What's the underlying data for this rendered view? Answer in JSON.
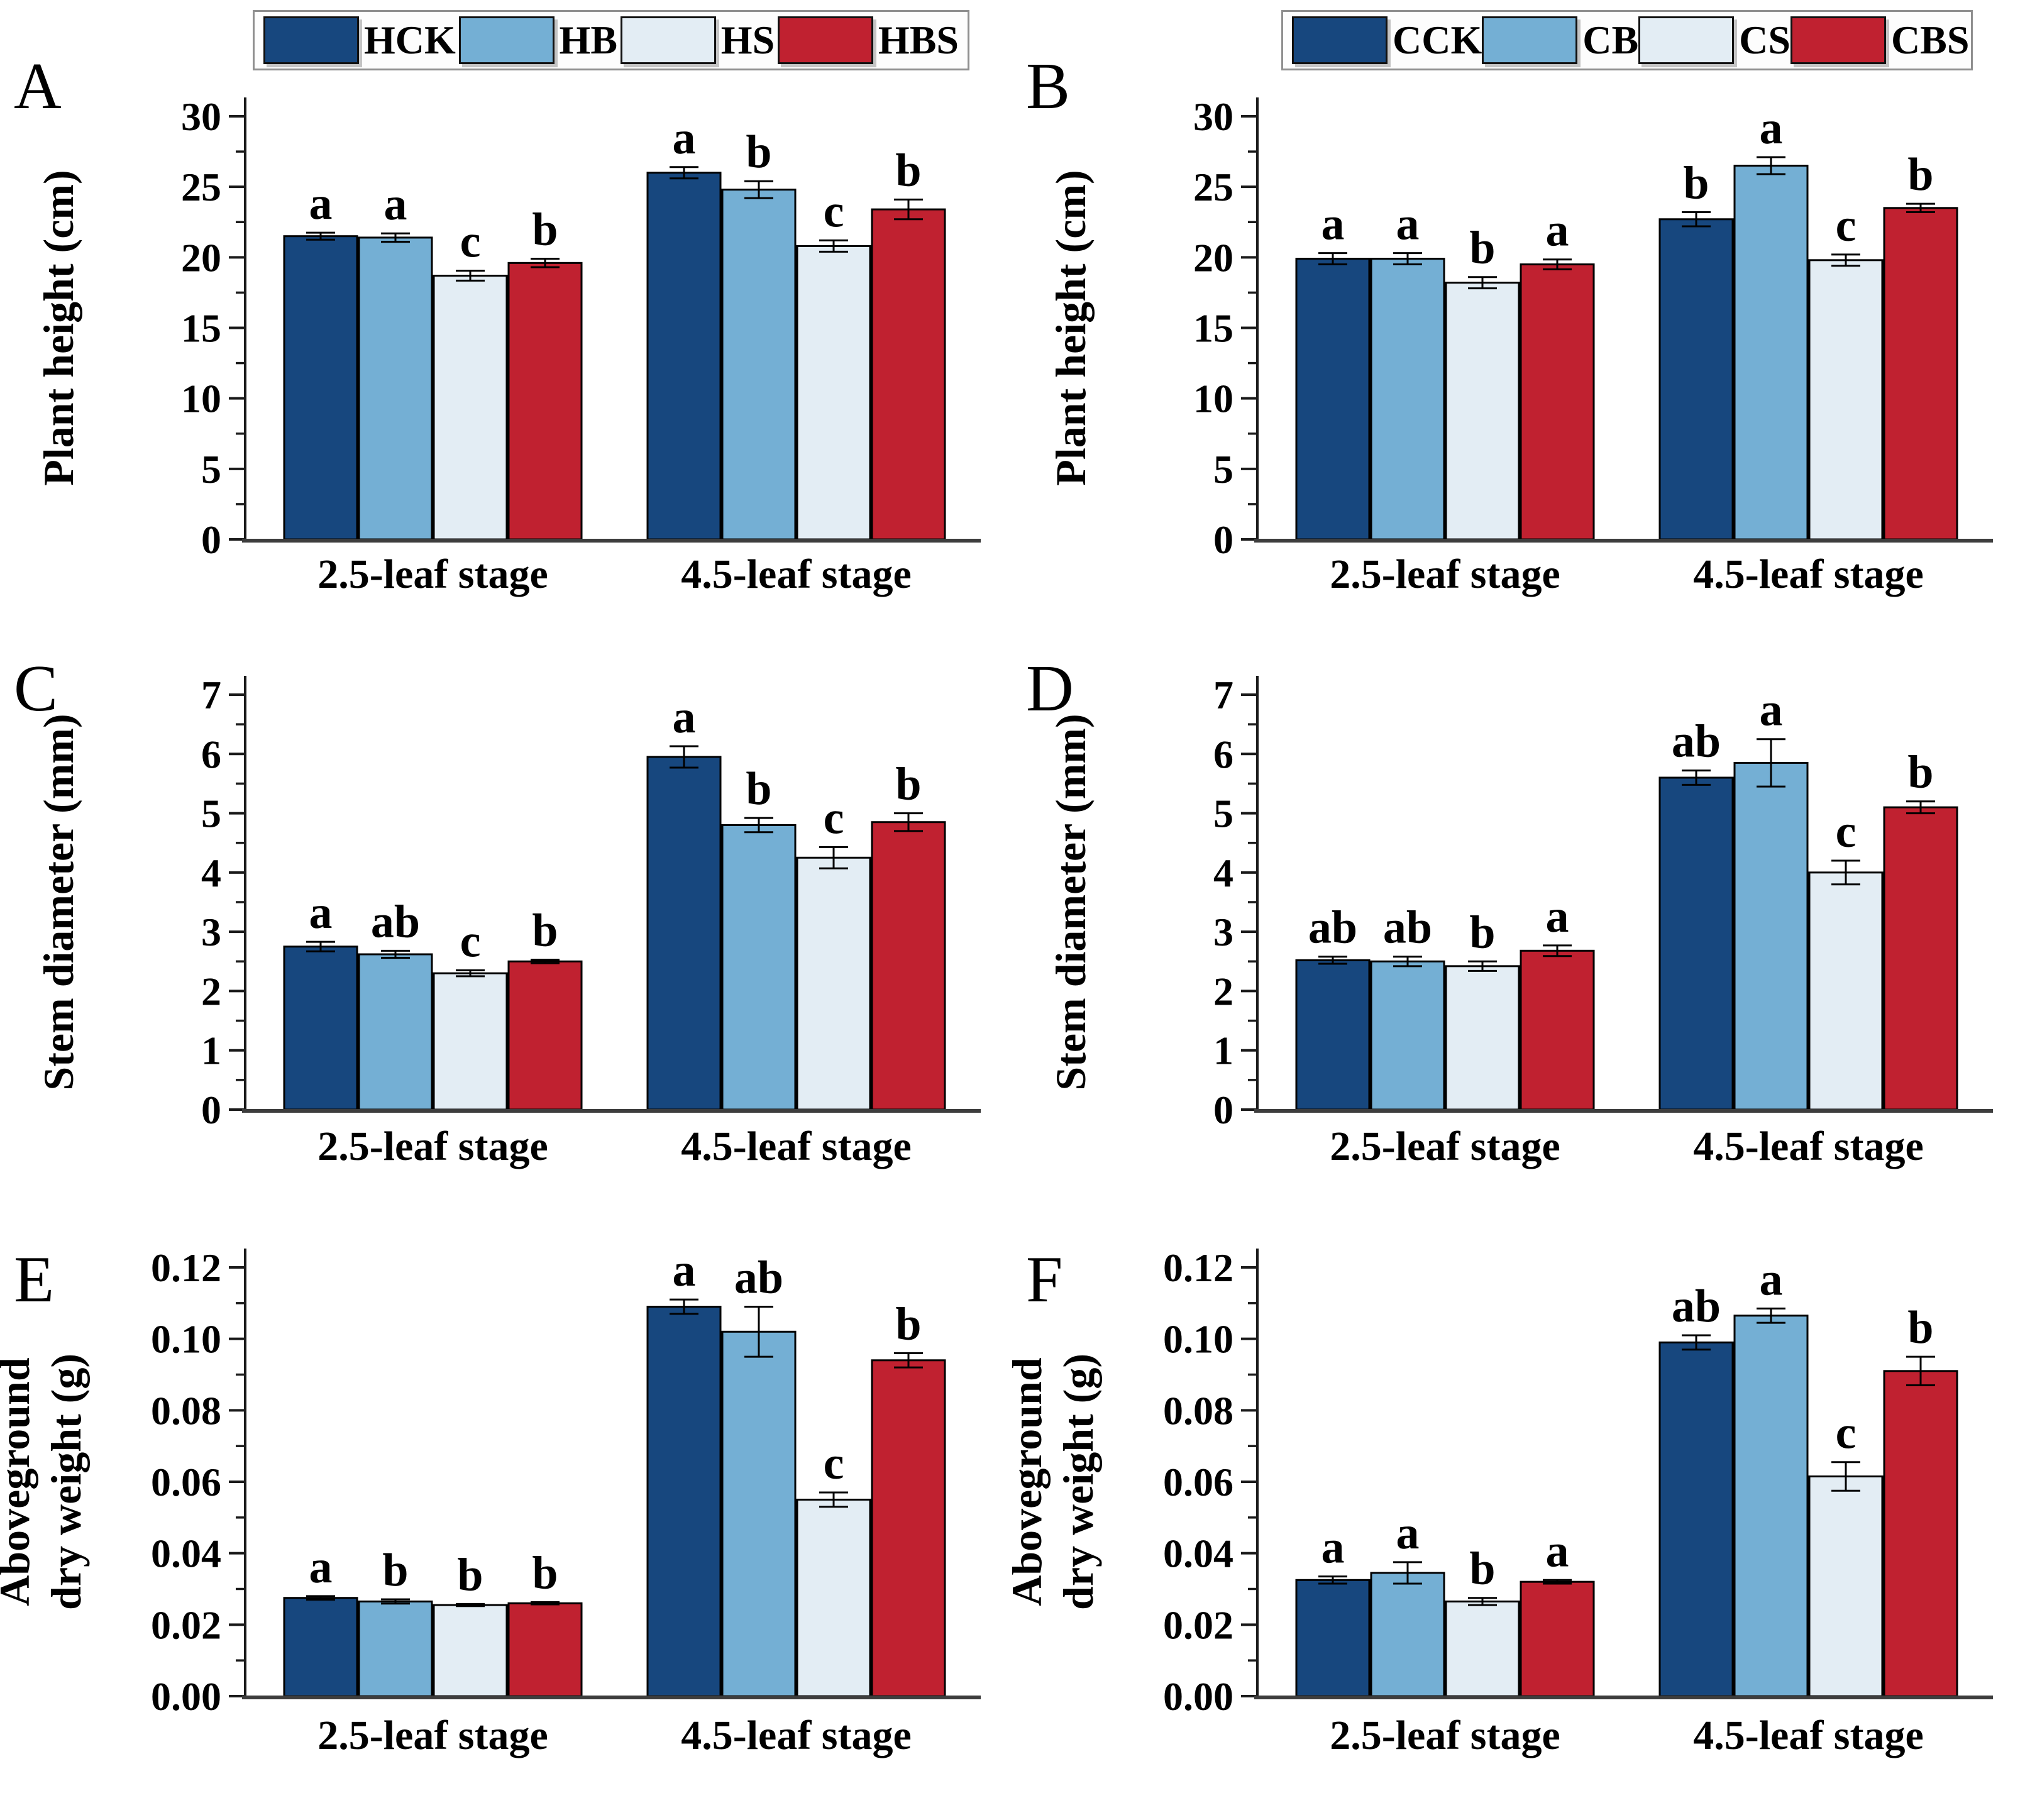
{
  "palette": {
    "dark_blue": "#17477e",
    "light_blue": "#74afd4",
    "pale_blue": "#e3edf4",
    "red": "#c02130",
    "axis": "#1a1a1a",
    "baseline": "#3d3d3d",
    "legend_border": "#8f8f8f"
  },
  "categories": [
    "2.5-leaf stage",
    "4.5-leaf stage"
  ],
  "chart_data": [
    {
      "type": "bar",
      "panel_letter": "A",
      "ylabel_lines": [
        "Plant height (cm)"
      ],
      "ylim": [
        0,
        30
      ],
      "ytick_step": 5,
      "yminor_step": 2.5,
      "ytick_decimals": 0,
      "legend": [
        "HCK",
        "HB",
        "HS",
        "HBS"
      ],
      "categories": [
        "2.5-leaf stage",
        "4.5-leaf stage"
      ],
      "series": [
        {
          "name": "HCK",
          "color": "dark_blue",
          "values": [
            21.5,
            26.0
          ],
          "errors": [
            0.25,
            0.4
          ],
          "letters": [
            "a",
            "a"
          ]
        },
        {
          "name": "HB",
          "color": "light_blue",
          "values": [
            21.4,
            24.8
          ],
          "errors": [
            0.3,
            0.6
          ],
          "letters": [
            "a",
            "b"
          ]
        },
        {
          "name": "HS",
          "color": "pale_blue",
          "values": [
            18.7,
            20.8
          ],
          "errors": [
            0.35,
            0.4
          ],
          "letters": [
            "c",
            "c"
          ]
        },
        {
          "name": "HBS",
          "color": "red",
          "values": [
            19.6,
            23.4
          ],
          "errors": [
            0.3,
            0.7
          ],
          "letters": [
            "b",
            "b"
          ]
        }
      ]
    },
    {
      "type": "bar",
      "panel_letter": "B",
      "ylabel_lines": [
        "Plant height (cm)"
      ],
      "ylim": [
        0,
        30
      ],
      "ytick_step": 5,
      "yminor_step": 2.5,
      "ytick_decimals": 0,
      "legend": [
        "CCK",
        "CB",
        "CS",
        "CBS"
      ],
      "categories": [
        "2.5-leaf stage",
        "4.5-leaf stage"
      ],
      "series": [
        {
          "name": "CCK",
          "color": "dark_blue",
          "values": [
            19.9,
            22.7
          ],
          "errors": [
            0.4,
            0.5
          ],
          "letters": [
            "a",
            "b"
          ]
        },
        {
          "name": "CB",
          "color": "light_blue",
          "values": [
            19.9,
            26.5
          ],
          "errors": [
            0.4,
            0.6
          ],
          "letters": [
            "a",
            "a"
          ]
        },
        {
          "name": "CS",
          "color": "pale_blue",
          "values": [
            18.2,
            19.8
          ],
          "errors": [
            0.4,
            0.4
          ],
          "letters": [
            "b",
            "c"
          ]
        },
        {
          "name": "CBS",
          "color": "red",
          "values": [
            19.5,
            23.5
          ],
          "errors": [
            0.35,
            0.3
          ],
          "letters": [
            "a",
            "b"
          ]
        }
      ]
    },
    {
      "type": "bar",
      "panel_letter": "C",
      "ylabel_lines": [
        "Stem diameter (mm)"
      ],
      "ylim": [
        0,
        7
      ],
      "ytick_step": 1,
      "yminor_step": 0.5,
      "ytick_decimals": 0,
      "legend": null,
      "categories": [
        "2.5-leaf stage",
        "4.5-leaf stage"
      ],
      "series": [
        {
          "name": "HCK",
          "color": "dark_blue",
          "values": [
            2.75,
            5.95
          ],
          "errors": [
            0.08,
            0.18
          ],
          "letters": [
            "a",
            "a"
          ]
        },
        {
          "name": "HB",
          "color": "light_blue",
          "values": [
            2.62,
            4.8
          ],
          "errors": [
            0.06,
            0.12
          ],
          "letters": [
            "ab",
            "b"
          ]
        },
        {
          "name": "HS",
          "color": "pale_blue",
          "values": [
            2.3,
            4.25
          ],
          "errors": [
            0.05,
            0.18
          ],
          "letters": [
            "c",
            "c"
          ]
        },
        {
          "name": "HBS",
          "color": "red",
          "values": [
            2.5,
            4.85
          ],
          "errors": [
            0.03,
            0.15
          ],
          "letters": [
            "b",
            "b"
          ]
        }
      ]
    },
    {
      "type": "bar",
      "panel_letter": "D",
      "ylabel_lines": [
        "Stem diameter (mm)"
      ],
      "ylim": [
        0,
        7
      ],
      "ytick_step": 1,
      "yminor_step": 0.5,
      "ytick_decimals": 0,
      "legend": null,
      "categories": [
        "2.5-leaf stage",
        "4.5-leaf stage"
      ],
      "series": [
        {
          "name": "CCK",
          "color": "dark_blue",
          "values": [
            2.52,
            5.6
          ],
          "errors": [
            0.06,
            0.12
          ],
          "letters": [
            "ab",
            "ab"
          ]
        },
        {
          "name": "CB",
          "color": "light_blue",
          "values": [
            2.5,
            5.85
          ],
          "errors": [
            0.08,
            0.4
          ],
          "letters": [
            "ab",
            "a"
          ]
        },
        {
          "name": "CS",
          "color": "pale_blue",
          "values": [
            2.42,
            4.0
          ],
          "errors": [
            0.08,
            0.2
          ],
          "letters": [
            "b",
            "c"
          ]
        },
        {
          "name": "CBS",
          "color": "red",
          "values": [
            2.68,
            5.1
          ],
          "errors": [
            0.09,
            0.1
          ],
          "letters": [
            "a",
            "b"
          ]
        }
      ]
    },
    {
      "type": "bar",
      "panel_letter": "E",
      "ylabel_lines": [
        "Aboveground",
        "dry weight (g)"
      ],
      "ylim": [
        0,
        0.12
      ],
      "ytick_step": 0.02,
      "yminor_step": 0.01,
      "ytick_decimals": 2,
      "legend": null,
      "categories": [
        "2.5-leaf stage",
        "4.5-leaf stage"
      ],
      "series": [
        {
          "name": "HCK",
          "color": "dark_blue",
          "values": [
            0.0275,
            0.109
          ],
          "errors": [
            0.0005,
            0.002
          ],
          "letters": [
            "a",
            "a"
          ]
        },
        {
          "name": "HB",
          "color": "light_blue",
          "values": [
            0.0265,
            0.102
          ],
          "errors": [
            0.0006,
            0.007
          ],
          "letters": [
            "b",
            "ab"
          ]
        },
        {
          "name": "HS",
          "color": "pale_blue",
          "values": [
            0.0255,
            0.055
          ],
          "errors": [
            0.0003,
            0.002
          ],
          "letters": [
            "b",
            "c"
          ]
        },
        {
          "name": "HBS",
          "color": "red",
          "values": [
            0.026,
            0.094
          ],
          "errors": [
            0.0003,
            0.002
          ],
          "letters": [
            "b",
            "b"
          ]
        }
      ]
    },
    {
      "type": "bar",
      "panel_letter": "F",
      "ylabel_lines": [
        "Aboveground",
        "dry weight (g)"
      ],
      "ylim": [
        0,
        0.12
      ],
      "ytick_step": 0.02,
      "yminor_step": 0.01,
      "ytick_decimals": 2,
      "legend": null,
      "categories": [
        "2.5-leaf stage",
        "4.5-leaf stage"
      ],
      "series": [
        {
          "name": "CCK",
          "color": "dark_blue",
          "values": [
            0.0325,
            0.099
          ],
          "errors": [
            0.001,
            0.002
          ],
          "letters": [
            "a",
            "ab"
          ]
        },
        {
          "name": "CB",
          "color": "light_blue",
          "values": [
            0.0345,
            0.1065
          ],
          "errors": [
            0.003,
            0.002
          ],
          "letters": [
            "a",
            "a"
          ]
        },
        {
          "name": "CS",
          "color": "pale_blue",
          "values": [
            0.0265,
            0.0615
          ],
          "errors": [
            0.001,
            0.004
          ],
          "letters": [
            "b",
            "c"
          ]
        },
        {
          "name": "CBS",
          "color": "red",
          "values": [
            0.032,
            0.091
          ],
          "errors": [
            0.0005,
            0.004
          ],
          "letters": [
            "a",
            "b"
          ]
        }
      ]
    }
  ]
}
